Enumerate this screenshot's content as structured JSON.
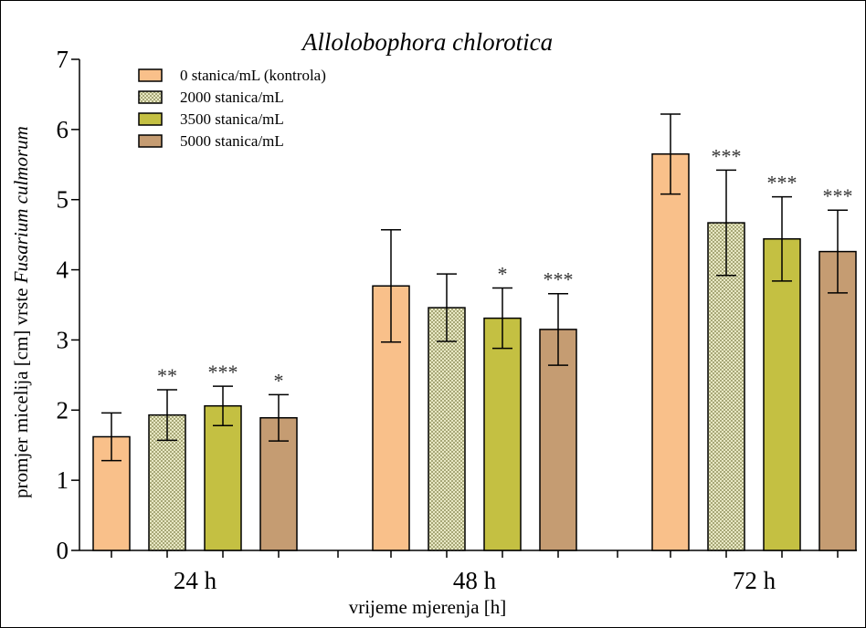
{
  "chart_data": {
    "type": "bar",
    "title": "Allolobophora chlorotica",
    "xlabel": "vrijeme mjerenja [h]",
    "ylabel_prefix": "promjer micelija [cm] vrste ",
    "ylabel_species": "Fusarium culmorum",
    "ylim": [
      0,
      7
    ],
    "yticks": [
      "0",
      "1",
      "2",
      "3",
      "4",
      "5",
      "6",
      "7"
    ],
    "categories": [
      "24 h",
      "48 h",
      "72 h"
    ],
    "series": [
      {
        "name": "0 stanica/mL (kontrola)",
        "color": "#f9c08a",
        "pattern": "solid",
        "values": [
          1.62,
          3.77,
          5.65
        ],
        "err": [
          0.34,
          0.8,
          0.57
        ],
        "sig": [
          "",
          "",
          ""
        ]
      },
      {
        "name": "2000 stanica/mL",
        "color": "#d7d7a9",
        "pattern": "checker",
        "values": [
          1.93,
          3.46,
          4.67
        ],
        "err": [
          0.36,
          0.48,
          0.75
        ],
        "sig": [
          "**",
          "",
          "***"
        ]
      },
      {
        "name": "3500 stanica/mL",
        "color": "#c4c042",
        "pattern": "solid",
        "values": [
          2.06,
          3.31,
          4.44
        ],
        "err": [
          0.28,
          0.43,
          0.6
        ],
        "sig": [
          "***",
          "*",
          "***"
        ]
      },
      {
        "name": "5000 stanica/mL",
        "color": "#c59c72",
        "pattern": "solid",
        "values": [
          1.89,
          3.15,
          4.26
        ],
        "err": [
          0.33,
          0.51,
          0.59
        ],
        "sig": [
          "*",
          "***",
          "***"
        ]
      }
    ],
    "legend_position": "top-left",
    "grid": false
  }
}
